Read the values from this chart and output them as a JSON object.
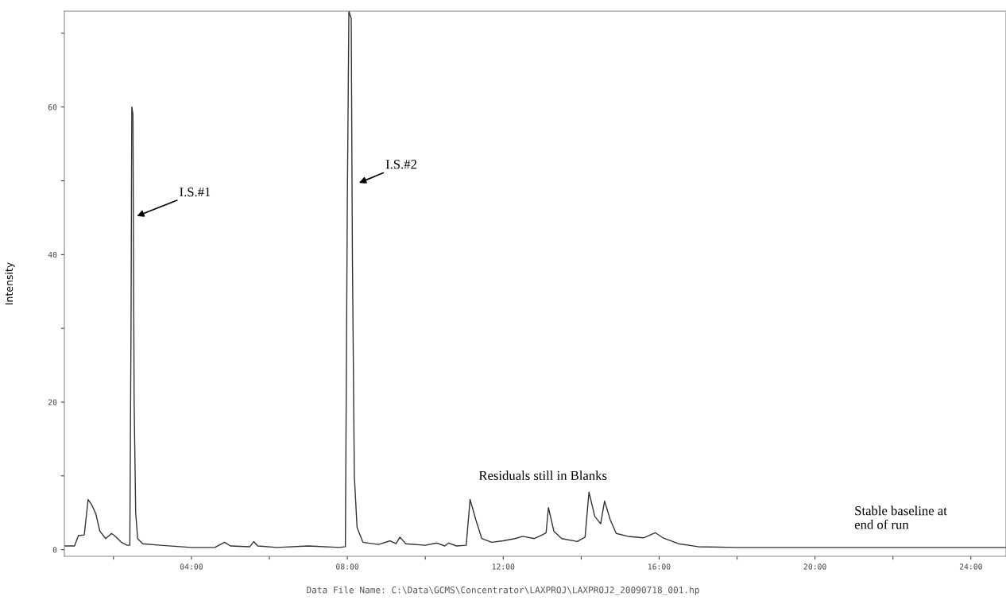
{
  "chart_data": {
    "type": "line",
    "ylabel": "Intensity",
    "xlim": [
      0.74,
      24.9
    ],
    "ylim": [
      -0.9,
      73
    ],
    "xticks": [
      {
        "value": 2,
        "label": null
      },
      {
        "value": 4,
        "label": "04:00"
      },
      {
        "value": 6,
        "label": null
      },
      {
        "value": 8,
        "label": "08:00"
      },
      {
        "value": 10,
        "label": null
      },
      {
        "value": 12,
        "label": "12:00"
      },
      {
        "value": 14,
        "label": null
      },
      {
        "value": 16,
        "label": "16:00"
      },
      {
        "value": 18,
        "label": null
      },
      {
        "value": 20,
        "label": "20:00"
      },
      {
        "value": 22,
        "label": null
      },
      {
        "value": 24,
        "label": "24:00"
      }
    ],
    "yticks": [
      0,
      {
        "value": 10,
        "label": null
      },
      20,
      {
        "value": 30,
        "label": null
      },
      40,
      {
        "value": 50,
        "label": null
      },
      60,
      {
        "value": 70,
        "label": null
      }
    ],
    "grid": false,
    "legend": false,
    "marker": "none",
    "line_style": "solid",
    "series": [
      {
        "color": "#333333",
        "x": [
          0.74,
          1.0,
          1.1,
          1.25,
          1.35,
          1.45,
          1.55,
          1.65,
          1.8,
          1.95,
          2.05,
          2.2,
          2.35,
          2.42,
          2.45,
          2.47,
          2.5,
          2.53,
          2.57,
          2.62,
          2.75,
          3.2,
          4.0,
          4.6,
          4.85,
          5.0,
          5.5,
          5.6,
          5.7,
          6.2,
          7.0,
          7.8,
          7.95,
          8.0,
          8.04,
          8.1,
          8.13,
          8.18,
          8.25,
          8.4,
          8.8,
          9.1,
          9.25,
          9.35,
          9.5,
          10.0,
          10.3,
          10.5,
          10.6,
          10.8,
          11.05,
          11.15,
          11.3,
          11.45,
          11.7,
          12.0,
          12.3,
          12.5,
          12.8,
          13.0,
          13.1,
          13.16,
          13.3,
          13.5,
          13.9,
          14.1,
          14.2,
          14.35,
          14.5,
          14.6,
          14.75,
          14.9,
          15.2,
          15.6,
          15.9,
          16.1,
          16.5,
          17.0,
          18.0,
          20.0,
          22.0,
          24.0,
          24.9
        ],
        "values": [
          0.5,
          0.5,
          1.9,
          2.0,
          6.8,
          6.0,
          4.8,
          2.5,
          1.5,
          2.2,
          1.8,
          1.0,
          0.6,
          0.6,
          30,
          60,
          59,
          20,
          5,
          1.5,
          0.8,
          0.6,
          0.3,
          0.3,
          1.0,
          0.5,
          0.4,
          1.1,
          0.5,
          0.3,
          0.5,
          0.3,
          0.4,
          47,
          73,
          72,
          40,
          10,
          3,
          1.0,
          0.7,
          1.2,
          0.8,
          1.7,
          0.8,
          0.6,
          0.9,
          0.5,
          0.9,
          0.5,
          0.6,
          6.8,
          4,
          1.5,
          1.0,
          1.2,
          1.5,
          1.8,
          1.5,
          2.0,
          2.3,
          5.7,
          2.5,
          1.5,
          1.1,
          1.7,
          7.8,
          4.5,
          3.5,
          6.6,
          4.0,
          2.2,
          1.8,
          1.6,
          2.3,
          1.6,
          0.8,
          0.4,
          0.3,
          0.3,
          0.3,
          0.3,
          0.3
        ]
      }
    ],
    "annotations": [
      "I.S.#1",
      "I.S.#2",
      "Residuals still in Blanks",
      "Stable baseline at\nend of run",
      "Data File Name: C:\\Data\\GCMS\\Concentrator\\LAXPROJ\\LAXPROJ2_20090718_001.hp"
    ]
  }
}
